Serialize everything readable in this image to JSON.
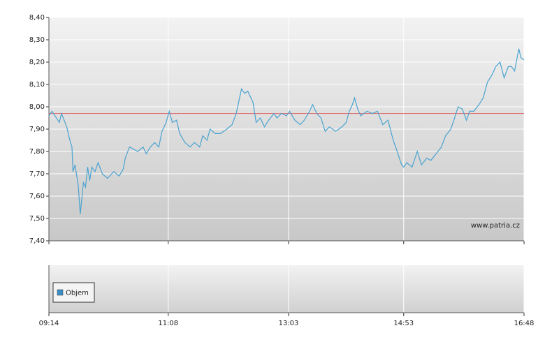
{
  "chart_data": {
    "type": "line",
    "x": [
      "09:14",
      "09:17",
      "09:24",
      "09:26",
      "09:31",
      "09:34",
      "09:36",
      "09:37",
      "09:39",
      "09:42",
      "09:44",
      "09:47",
      "09:49",
      "09:51",
      "09:53",
      "09:55",
      "09:58",
      "10:01",
      "10:05",
      "10:10",
      "10:16",
      "10:21",
      "10:25",
      "10:27",
      "10:31",
      "10:35",
      "10:39",
      "10:44",
      "10:47",
      "10:51",
      "10:55",
      "10:59",
      "11:02",
      "11:06",
      "11:09",
      "11:12",
      "11:16",
      "11:19",
      "11:24",
      "11:29",
      "11:33",
      "11:38",
      "11:41",
      "11:45",
      "11:48",
      "11:53",
      "11:58",
      "12:04",
      "12:09",
      "12:13",
      "12:18",
      "12:21",
      "12:24",
      "12:29",
      "12:32",
      "12:36",
      "12:40",
      "12:44",
      "12:49",
      "12:52",
      "12:56",
      "13:01",
      "13:04",
      "13:09",
      "13:14",
      "13:18",
      "13:23",
      "13:26",
      "13:30",
      "13:34",
      "13:38",
      "13:42",
      "13:48",
      "13:54",
      "13:58",
      "14:01",
      "14:04",
      "14:06",
      "14:09",
      "14:12",
      "14:18",
      "14:23",
      "14:28",
      "14:33",
      "14:38",
      "14:43",
      "14:46",
      "14:51",
      "14:53",
      "14:56",
      "15:01",
      "15:06",
      "15:10",
      "15:15",
      "15:19",
      "15:24",
      "15:29",
      "15:33",
      "15:38",
      "15:41",
      "15:45",
      "15:49",
      "15:53",
      "15:56",
      "16:00",
      "16:05",
      "16:09",
      "16:13",
      "16:17",
      "16:21",
      "16:25",
      "16:29",
      "16:33",
      "16:36",
      "16:39",
      "16:43",
      "16:45",
      "16:48"
    ],
    "values": [
      7.96,
      7.98,
      7.93,
      7.97,
      7.91,
      7.85,
      7.82,
      7.71,
      7.74,
      7.65,
      7.52,
      7.66,
      7.64,
      7.73,
      7.67,
      7.73,
      7.71,
      7.75,
      7.7,
      7.68,
      7.71,
      7.69,
      7.72,
      7.77,
      7.82,
      7.81,
      7.8,
      7.82,
      7.79,
      7.82,
      7.84,
      7.82,
      7.89,
      7.93,
      7.98,
      7.93,
      7.94,
      7.88,
      7.84,
      7.82,
      7.84,
      7.82,
      7.87,
      7.85,
      7.9,
      7.88,
      7.88,
      7.9,
      7.92,
      7.97,
      8.08,
      8.06,
      8.07,
      8.02,
      7.93,
      7.95,
      7.91,
      7.94,
      7.97,
      7.95,
      7.97,
      7.96,
      7.98,
      7.94,
      7.92,
      7.94,
      7.98,
      8.01,
      7.97,
      7.95,
      7.89,
      7.91,
      7.89,
      7.91,
      7.93,
      7.98,
      8.01,
      8.04,
      7.99,
      7.96,
      7.98,
      7.97,
      7.98,
      7.92,
      7.94,
      7.85,
      7.81,
      7.74,
      7.73,
      7.75,
      7.73,
      7.8,
      7.74,
      7.77,
      7.76,
      7.79,
      7.82,
      7.87,
      7.9,
      7.94,
      8.0,
      7.99,
      7.94,
      7.98,
      7.98,
      8.01,
      8.04,
      8.11,
      8.14,
      8.18,
      8.2,
      8.13,
      8.18,
      8.18,
      8.16,
      8.26,
      8.22,
      8.21
    ],
    "color": "#4aa3d0",
    "xlim": [
      "09:14",
      "16:48"
    ],
    "xticks": [
      "09:14",
      "11:08",
      "13:03",
      "14:53",
      "16:48"
    ],
    "ylim": [
      7.4,
      8.4
    ],
    "yticks": [
      {
        "value": 7.4,
        "label": "7,40"
      },
      {
        "value": 7.5,
        "label": "7,50"
      },
      {
        "value": 7.6,
        "label": "7,60"
      },
      {
        "value": 7.7,
        "label": "7,70"
      },
      {
        "value": 7.8,
        "label": "7,80"
      },
      {
        "value": 7.9,
        "label": "7,90"
      },
      {
        "value": 8.0,
        "label": "8,00"
      },
      {
        "value": 8.1,
        "label": "8,10"
      },
      {
        "value": 8.2,
        "label": "8,20"
      },
      {
        "value": 8.3,
        "label": "8,30"
      },
      {
        "value": 8.4,
        "label": "8,40"
      }
    ],
    "grid": true,
    "reference_line": {
      "value": 7.97,
      "color": "#e06060"
    },
    "watermark": "www.patria.cz",
    "legend": {
      "label": "Objem",
      "color": "#3a8fc8"
    }
  }
}
